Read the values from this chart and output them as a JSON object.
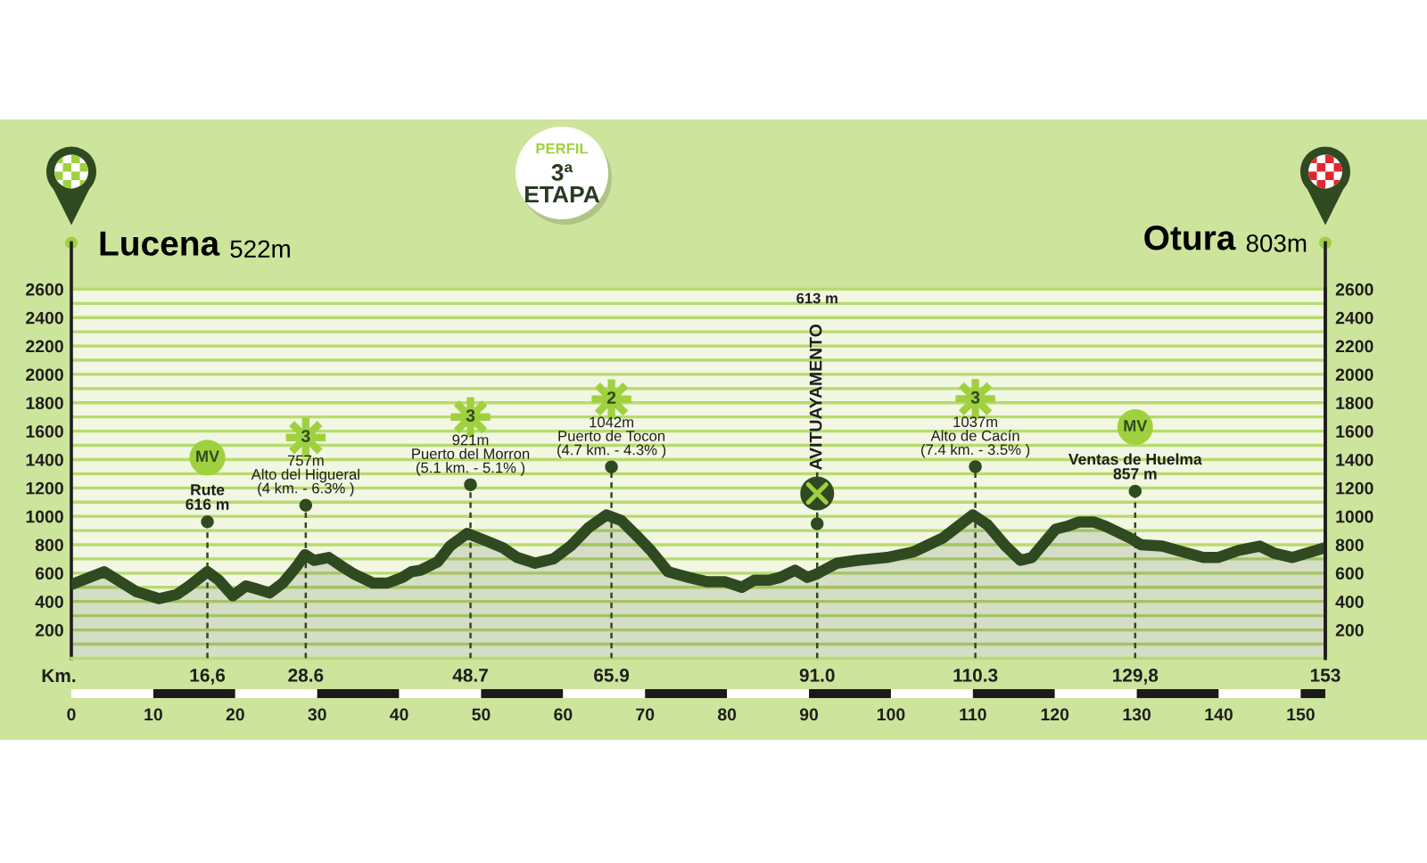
{
  "chart_data": {
    "type": "area",
    "title": "PERFIL",
    "subtitle": "3ª\nETAPA",
    "x2label": "Km.",
    "x": [
      0,
      4.0,
      7.9,
      10.7,
      12.9,
      14.4,
      16.6,
      18.0,
      19.7,
      21.3,
      22.5,
      24.2,
      25.8,
      27.4,
      28.5,
      29.6,
      31.4,
      33.2,
      34.6,
      36.8,
      38.6,
      40.4,
      41.5,
      42.6,
      44.7,
      46.2,
      48.3,
      50.5,
      52.6,
      54.4,
      56.6,
      58.8,
      60.9,
      63.1,
      65.3,
      67.1,
      69.2,
      70.7,
      72.8,
      75.3,
      77.5,
      79.7,
      81.8,
      83.3,
      85.1,
      86.5,
      88.3,
      89.8,
      90.8,
      93.4,
      95.9,
      99.5,
      102.8,
      104.6,
      106.4,
      108.2,
      110.0,
      111.8,
      114.0,
      115.8,
      117.2,
      120.1,
      121.5,
      122.9,
      124.8,
      126.2,
      129.1,
      130.5,
      133.1,
      135.6,
      138.1,
      139.9,
      142.4,
      145.0,
      146.8,
      149.0,
      153
    ],
    "values": [
      520,
      610,
      470,
      420,
      450,
      510,
      610,
      550,
      440,
      510,
      490,
      460,
      530,
      640,
      730,
      690,
      710,
      640,
      590,
      530,
      530,
      570,
      610,
      620,
      680,
      790,
      880,
      830,
      780,
      710,
      670,
      700,
      790,
      920,
      1010,
      970,
      850,
      760,
      610,
      570,
      540,
      540,
      500,
      550,
      550,
      570,
      620,
      570,
      590,
      670,
      690,
      710,
      750,
      800,
      850,
      930,
      1010,
      940,
      790,
      690,
      710,
      910,
      930,
      960,
      960,
      930,
      850,
      800,
      790,
      750,
      710,
      710,
      760,
      790,
      740,
      710,
      780
    ],
    "color": "#2f4a20",
    "xlim": [
      0,
      153
    ],
    "xticks": [
      0,
      10,
      20,
      30,
      40,
      50,
      60,
      70,
      80,
      90,
      100,
      110,
      120,
      130,
      140,
      150
    ],
    "x2lim": [
      0,
      153
    ],
    "x2ticks": [
      {
        "value": 16.6,
        "label": "16,6"
      },
      28.6,
      48.7,
      65.9,
      {
        "value": 91,
        "label": "91.0"
      },
      110.3,
      {
        "value": 129.8,
        "label": "129,8"
      },
      153
    ],
    "ylim": [
      0,
      2600
    ],
    "yticks": [
      {
        "value": 100,
        "label": null
      },
      200,
      {
        "value": 300,
        "label": null
      },
      400,
      {
        "value": 500,
        "label": null
      },
      600,
      {
        "value": 700,
        "label": null
      },
      800,
      {
        "value": 900,
        "label": null
      },
      1000,
      {
        "value": 1100,
        "label": null
      },
      1200,
      {
        "value": 1300,
        "label": null
      },
      1400,
      {
        "value": 1500,
        "label": null
      },
      1600,
      {
        "value": 1700,
        "label": null
      },
      1800,
      {
        "value": 1900,
        "label": null
      },
      2000,
      {
        "value": 2100,
        "label": null
      },
      2200,
      {
        "value": 2300,
        "label": null
      },
      2400,
      {
        "value": 2500,
        "label": null
      },
      2600
    ],
    "y2lim": [
      0,
      2600
    ],
    "y2ticks": [
      200,
      400,
      600,
      800,
      1000,
      1200,
      1400,
      1600,
      1800,
      2000,
      2200,
      2400,
      2600
    ],
    "grid": "y",
    "ref_lines": [
      {
        "axis": "x",
        "value": 16.6,
        "label": "Rute\n616 m",
        "color": "#2f4a20",
        "line_style": "dashed"
      },
      {
        "axis": "x",
        "value": 28.6,
        "label": "757m\nAlto del Higueral\n(4 km. - 6.3% )",
        "color": "#2f4a20",
        "line_style": "dashed"
      },
      {
        "axis": "x",
        "value": 48.7,
        "label": "921m\nPuerto del Morron\n(5.1 km. - 5.1% )",
        "color": "#2f4a20",
        "line_style": "dashed"
      },
      {
        "axis": "x",
        "value": 65.9,
        "label": "1042m\nPuerto de Tocon\n(4.7 km. - 4.3% )",
        "color": "#2f4a20",
        "line_style": "dashed"
      },
      {
        "axis": "x",
        "value": 91,
        "label": "AVITUAYAMENTO",
        "color": "#2f4a20",
        "line_style": "dashed"
      },
      {
        "axis": "x",
        "value": 110.3,
        "label": "1037m\nAlto de Cacín\n(7.4 km. - 3.5% )",
        "color": "#2f4a20",
        "line_style": "dashed"
      },
      {
        "axis": "x",
        "value": 129.8,
        "label": "Ventas de Huelma\n857 m",
        "color": "#2f4a20",
        "line_style": "dashed"
      }
    ],
    "annotations": [
      "Lucena",
      "522m",
      "MV",
      "3",
      "3",
      "2",
      "613 m",
      "3",
      "MV",
      "Otura",
      "803m"
    ]
  }
}
